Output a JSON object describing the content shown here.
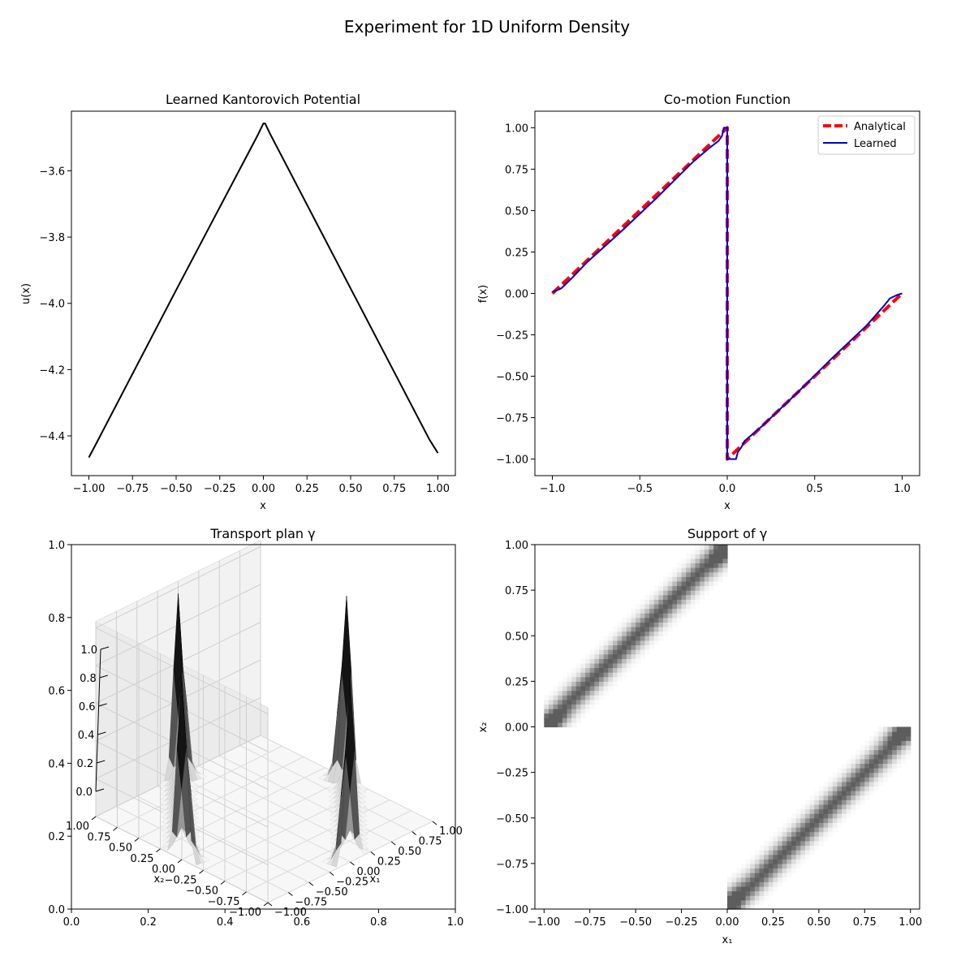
{
  "figure": {
    "title": "Experiment for 1D Uniform Density"
  },
  "chart_data": [
    {
      "type": "line",
      "title": "Learned Kantorovich Potential",
      "xlabel": "x",
      "ylabel": "u(x)",
      "xlim": [
        -1.1,
        1.1
      ],
      "ylim": [
        -4.52,
        -3.42
      ],
      "xticks": [
        -1.0,
        -0.75,
        -0.5,
        -0.25,
        0.0,
        0.25,
        0.5,
        0.75,
        1.0
      ],
      "xtick_labels": [
        "−1.00",
        "−0.75",
        "−0.50",
        "−0.25",
        "0.00",
        "0.25",
        "0.50",
        "0.75",
        "1.00"
      ],
      "yticks": [
        -4.4,
        -4.2,
        -4.0,
        -3.8,
        -3.6
      ],
      "ytick_labels": [
        "−4.4",
        "−4.2",
        "−4.0",
        "−3.8",
        "−3.6"
      ],
      "grid": false,
      "series": [
        {
          "color": "#000000",
          "x": [
            -1.0,
            -0.95,
            -0.5,
            -0.03,
            0.0,
            0.01,
            0.04,
            0.5,
            0.95,
            1.0
          ],
          "y": [
            -4.465,
            -4.415,
            -3.96,
            -3.49,
            -3.457,
            -3.457,
            -3.49,
            -3.955,
            -4.41,
            -4.452
          ]
        }
      ]
    },
    {
      "type": "line",
      "title": "Co-motion Function",
      "xlabel": "x",
      "ylabel": "f(x)",
      "xlim": [
        -1.1,
        1.1
      ],
      "ylim": [
        -1.1,
        1.1
      ],
      "xticks": [
        -1.0,
        -0.5,
        0.0,
        0.5,
        1.0
      ],
      "xtick_labels": [
        "−1.0",
        "−0.5",
        "0.0",
        "0.5",
        "1.0"
      ],
      "yticks": [
        -1.0,
        -0.75,
        -0.5,
        -0.25,
        0.0,
        0.25,
        0.5,
        0.75,
        1.0
      ],
      "ytick_labels": [
        "−1.00",
        "−0.75",
        "−0.50",
        "−0.25",
        "0.00",
        "0.25",
        "0.50",
        "0.75",
        "1.00"
      ],
      "grid": false,
      "legend": "top-right",
      "series": [
        {
          "name": "Analytical",
          "color": "#ff0000",
          "style": "dashed",
          "x": [
            -1.0,
            0.0,
            0.0,
            1.0
          ],
          "y": [
            0.0,
            1.0,
            -1.0,
            0.0
          ]
        },
        {
          "name": "Learned",
          "color": "#0000cd",
          "style": "solid",
          "x": [
            -1.0,
            -0.97,
            -0.95,
            -0.9,
            -0.8,
            -0.6,
            -0.4,
            -0.2,
            -0.1,
            -0.05,
            -0.03,
            -0.02,
            -0.01,
            0.0,
            0.0,
            0.01,
            0.02,
            0.05,
            0.06,
            0.08,
            0.1,
            0.2,
            0.4,
            0.6,
            0.8,
            0.9,
            0.93,
            0.95,
            0.97,
            1.0
          ],
          "y": [
            0.01,
            0.02,
            0.03,
            0.08,
            0.19,
            0.38,
            0.58,
            0.79,
            0.88,
            0.92,
            0.95,
            1.0,
            1.0,
            1.0,
            -1.0,
            -1.0,
            -1.0,
            -1.0,
            -0.96,
            -0.93,
            -0.89,
            -0.8,
            -0.6,
            -0.39,
            -0.19,
            -0.07,
            -0.03,
            -0.02,
            -0.01,
            0.0
          ]
        }
      ]
    },
    {
      "type": "surface3d",
      "title": "Transport plan γ",
      "xlabel": "x₁",
      "ylabel": "x₂",
      "frame_xticks": [
        0.0,
        0.2,
        0.4,
        0.6,
        0.8,
        1.0
      ],
      "frame_xtick_labels": [
        "0.0",
        "0.2",
        "0.4",
        "0.6",
        "0.8",
        "1.0"
      ],
      "frame_yticks": [
        0.0,
        0.2,
        0.4,
        0.6,
        0.8,
        1.0
      ],
      "frame_ytick_labels": [
        "0.0",
        "0.2",
        "0.4",
        "0.6",
        "0.8",
        "1.0"
      ],
      "x1_ticks": [
        -1.0,
        -0.75,
        -0.5,
        -0.25,
        0.0,
        0.25,
        0.5,
        0.75,
        1.0
      ],
      "x1_tick_labels": [
        "−1.00",
        "−0.75",
        "−0.50",
        "−0.25",
        "0.00",
        "0.25",
        "0.50",
        "0.75",
        "1.00"
      ],
      "x2_ticks": [
        -1.0,
        -0.75,
        -0.5,
        -0.25,
        0.0,
        0.25,
        0.5,
        0.75,
        1.0
      ],
      "x2_tick_labels": [
        "−1.00",
        "−0.75",
        "−0.50",
        "−0.25",
        "0.00",
        "0.25",
        "0.50",
        "0.75",
        "1.00"
      ],
      "z_ticks": [
        0.0,
        0.2,
        0.4,
        0.6,
        0.8,
        1.0
      ],
      "z_tick_labels": [
        "0.0",
        "0.2",
        "0.4",
        "0.6",
        "0.8",
        "1.0"
      ],
      "zlim": [
        0,
        1
      ],
      "colormap": "greys"
    },
    {
      "type": "heatmap",
      "title": "Support of γ",
      "xlabel": "x₁",
      "ylabel": "x₂",
      "xlim": [
        -1.05,
        1.05
      ],
      "ylim": [
        -1.0,
        1.0
      ],
      "xticks": [
        -1.0,
        -0.75,
        -0.5,
        -0.25,
        0.0,
        0.25,
        0.5,
        0.75,
        1.0
      ],
      "xtick_labels": [
        "−1.00",
        "−0.75",
        "−0.50",
        "−0.25",
        "0.00",
        "0.25",
        "0.50",
        "0.75",
        "1.00"
      ],
      "yticks": [
        -1.0,
        -0.75,
        -0.5,
        -0.25,
        0.0,
        0.25,
        0.5,
        0.75,
        1.0
      ],
      "ytick_labels": [
        "−1.00",
        "−0.75",
        "−0.50",
        "−0.25",
        "0.00",
        "0.25",
        "0.50",
        "0.75",
        "1.00"
      ],
      "colormap": "greys",
      "grid": false
    }
  ]
}
